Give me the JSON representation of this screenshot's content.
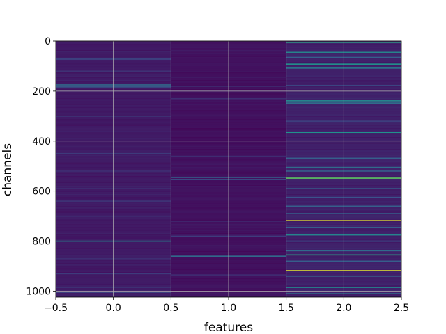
{
  "chart_data": {
    "type": "heatmap",
    "title": "",
    "xlabel": "features",
    "ylabel": "channels",
    "xlim": [
      -0.5,
      2.5
    ],
    "ylim": [
      1024,
      0
    ],
    "y_inverted": true,
    "grid": true,
    "colormap": "viridis",
    "base_color": "#440154",
    "columns": [
      {
        "x": 0,
        "base_intensity": 0.08,
        "rows": [
          {
            "y": 72,
            "v": 0.22
          },
          {
            "y": 120,
            "v": 0.15
          },
          {
            "y": 175,
            "v": 0.35
          },
          {
            "y": 183,
            "v": 0.28
          },
          {
            "y": 300,
            "v": 0.16
          },
          {
            "y": 450,
            "v": 0.18
          },
          {
            "y": 520,
            "v": 0.14
          },
          {
            "y": 590,
            "v": 0.15
          },
          {
            "y": 640,
            "v": 0.16
          },
          {
            "y": 700,
            "v": 0.14
          },
          {
            "y": 800,
            "v": 0.45
          },
          {
            "y": 870,
            "v": 0.14
          },
          {
            "y": 930,
            "v": 0.18
          },
          {
            "y": 985,
            "v": 0.15
          },
          {
            "y": 1005,
            "v": 0.2
          }
        ]
      },
      {
        "x": 1,
        "base_intensity": 0.05,
        "rows": [
          {
            "y": 180,
            "v": 0.16
          },
          {
            "y": 230,
            "v": 0.14
          },
          {
            "y": 460,
            "v": 0.13
          },
          {
            "y": 545,
            "v": 0.3
          },
          {
            "y": 553,
            "v": 0.22
          },
          {
            "y": 720,
            "v": 0.15
          },
          {
            "y": 780,
            "v": 0.18
          },
          {
            "y": 860,
            "v": 0.35
          },
          {
            "y": 935,
            "v": 0.14
          }
        ]
      },
      {
        "x": 2,
        "base_intensity": 0.1,
        "rows": [
          {
            "y": 5,
            "v": 0.55
          },
          {
            "y": 45,
            "v": 0.45
          },
          {
            "y": 65,
            "v": 0.3
          },
          {
            "y": 92,
            "v": 0.5
          },
          {
            "y": 108,
            "v": 0.4
          },
          {
            "y": 178,
            "v": 0.25
          },
          {
            "y": 238,
            "v": 0.45
          },
          {
            "y": 243,
            "v": 0.4
          },
          {
            "y": 248,
            "v": 0.35
          },
          {
            "y": 320,
            "v": 0.2
          },
          {
            "y": 365,
            "v": 0.5
          },
          {
            "y": 468,
            "v": 0.3
          },
          {
            "y": 505,
            "v": 0.35
          },
          {
            "y": 520,
            "v": 0.3
          },
          {
            "y": 548,
            "v": 0.75
          },
          {
            "y": 590,
            "v": 0.3
          },
          {
            "y": 625,
            "v": 0.25
          },
          {
            "y": 660,
            "v": 0.3
          },
          {
            "y": 690,
            "v": 0.3
          },
          {
            "y": 718,
            "v": 0.95
          },
          {
            "y": 745,
            "v": 0.3
          },
          {
            "y": 775,
            "v": 0.45
          },
          {
            "y": 800,
            "v": 0.25
          },
          {
            "y": 838,
            "v": 0.35
          },
          {
            "y": 855,
            "v": 0.55
          },
          {
            "y": 880,
            "v": 0.3
          },
          {
            "y": 918,
            "v": 0.95
          },
          {
            "y": 940,
            "v": 0.3
          },
          {
            "y": 985,
            "v": 0.45
          },
          {
            "y": 1010,
            "v": 0.35
          }
        ]
      }
    ],
    "xticks": [
      {
        "value": -0.5,
        "label": "−0.5"
      },
      {
        "value": 0.0,
        "label": "0.0"
      },
      {
        "value": 0.5,
        "label": "0.5"
      },
      {
        "value": 1.0,
        "label": "1.0"
      },
      {
        "value": 1.5,
        "label": "1.5"
      },
      {
        "value": 2.0,
        "label": "2.0"
      },
      {
        "value": 2.5,
        "label": "2.5"
      }
    ],
    "yticks": [
      {
        "value": 0,
        "label": "0"
      },
      {
        "value": 200,
        "label": "200"
      },
      {
        "value": 400,
        "label": "400"
      },
      {
        "value": 600,
        "label": "600"
      },
      {
        "value": 800,
        "label": "800"
      },
      {
        "value": 1000,
        "label": "1000"
      }
    ]
  }
}
